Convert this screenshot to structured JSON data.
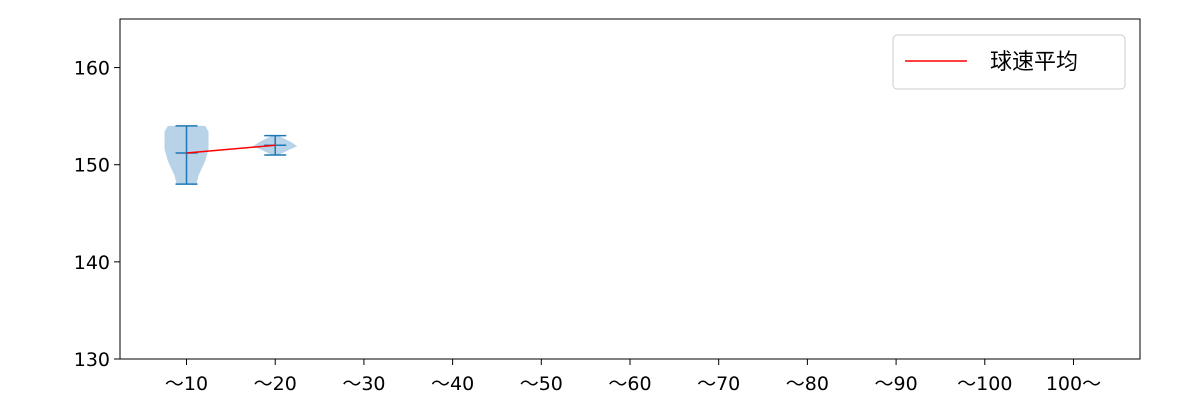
{
  "chart_data": {
    "type": "violin",
    "categories": [
      "～10",
      "～20",
      "～30",
      "～40",
      "～50",
      "～60",
      "～70",
      "～80",
      "～90",
      "～100",
      "100～"
    ],
    "violins": [
      {
        "category": "～10",
        "min": 148,
        "max": 154,
        "mean": 151.2
      },
      {
        "category": "～20",
        "min": 151,
        "max": 153,
        "mean": 152
      }
    ],
    "mean_line": {
      "name": "球速平均",
      "color": "#ff0000",
      "x": [
        "～10",
        "～20"
      ],
      "y": [
        151.2,
        152
      ]
    },
    "ylim": [
      130,
      165
    ],
    "yticks": [
      130,
      140,
      150,
      160
    ],
    "xlabel": "",
    "ylabel": "",
    "title": "",
    "grid": false,
    "legend": "top-right",
    "colors": {
      "violin_fill": "#b8d3e8",
      "violin_edge": "#1f77b4",
      "mean_line": "#ff0000"
    }
  }
}
